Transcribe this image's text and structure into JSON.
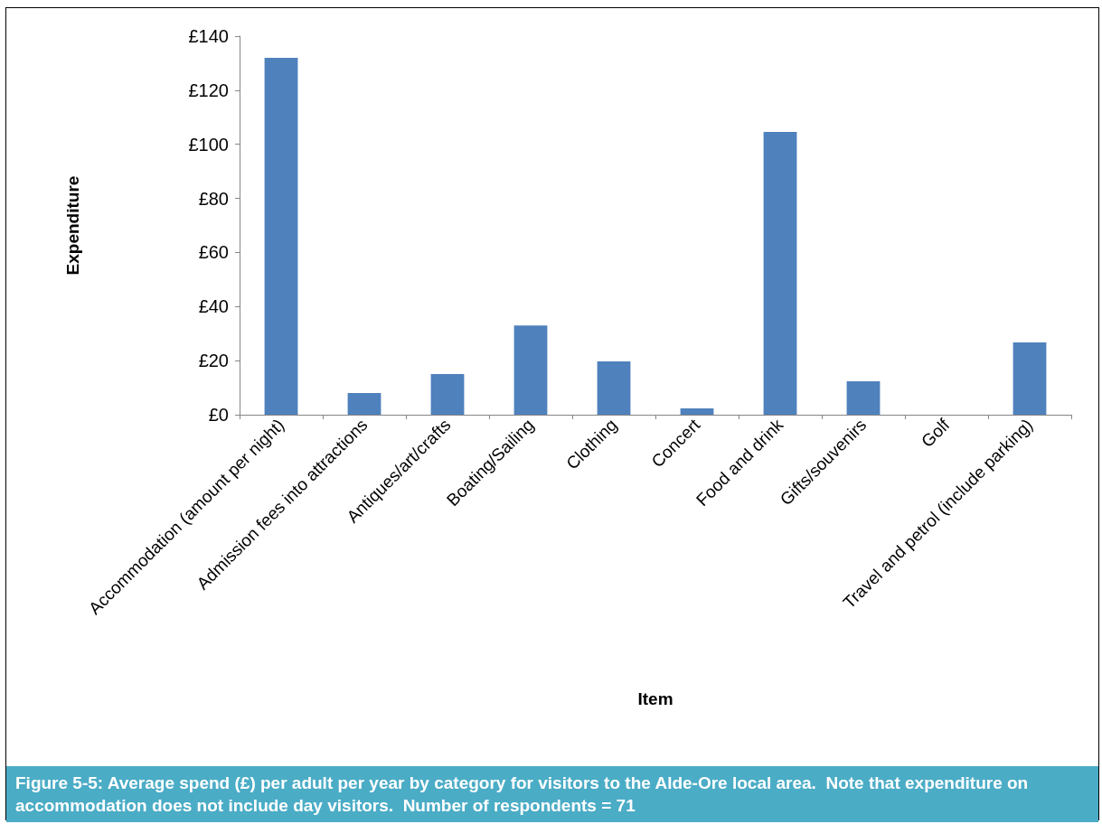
{
  "chart_data": {
    "type": "bar",
    "xlabel": "Item",
    "ylabel": "Expenditure",
    "categories": [
      "Accommodation (amount per night)",
      "Admission fees into attractions",
      "Antiques/art/crafts",
      "Boating/Sailing",
      "Clothing",
      "Concert",
      "Food and drink",
      "Gifts/souvenirs",
      "Golf",
      "Travel and petrol (include parking)"
    ],
    "values": [
      132,
      8,
      15,
      33,
      19.7,
      2.3,
      104.6,
      12.4,
      0,
      26.7
    ],
    "color": "#4f81bd",
    "ylim": [
      0,
      140
    ],
    "yticks": [
      {
        "value": 0,
        "label": "£0"
      },
      {
        "value": 20,
        "label": "£20"
      },
      {
        "value": 40,
        "label": "£40"
      },
      {
        "value": 60,
        "label": "£60"
      },
      {
        "value": 80,
        "label": "£80"
      },
      {
        "value": 100,
        "label": "£100"
      },
      {
        "value": 120,
        "label": "£120"
      },
      {
        "value": 140,
        "label": "£140"
      }
    ],
    "grid": false,
    "annotations": [
      "Figure 5-5: Average spend (£) per adult per year by category for visitors to the Alde-Ore local area.  Note that expenditure on accommodation does not include day visitors.  Number of respondents = 71"
    ]
  }
}
